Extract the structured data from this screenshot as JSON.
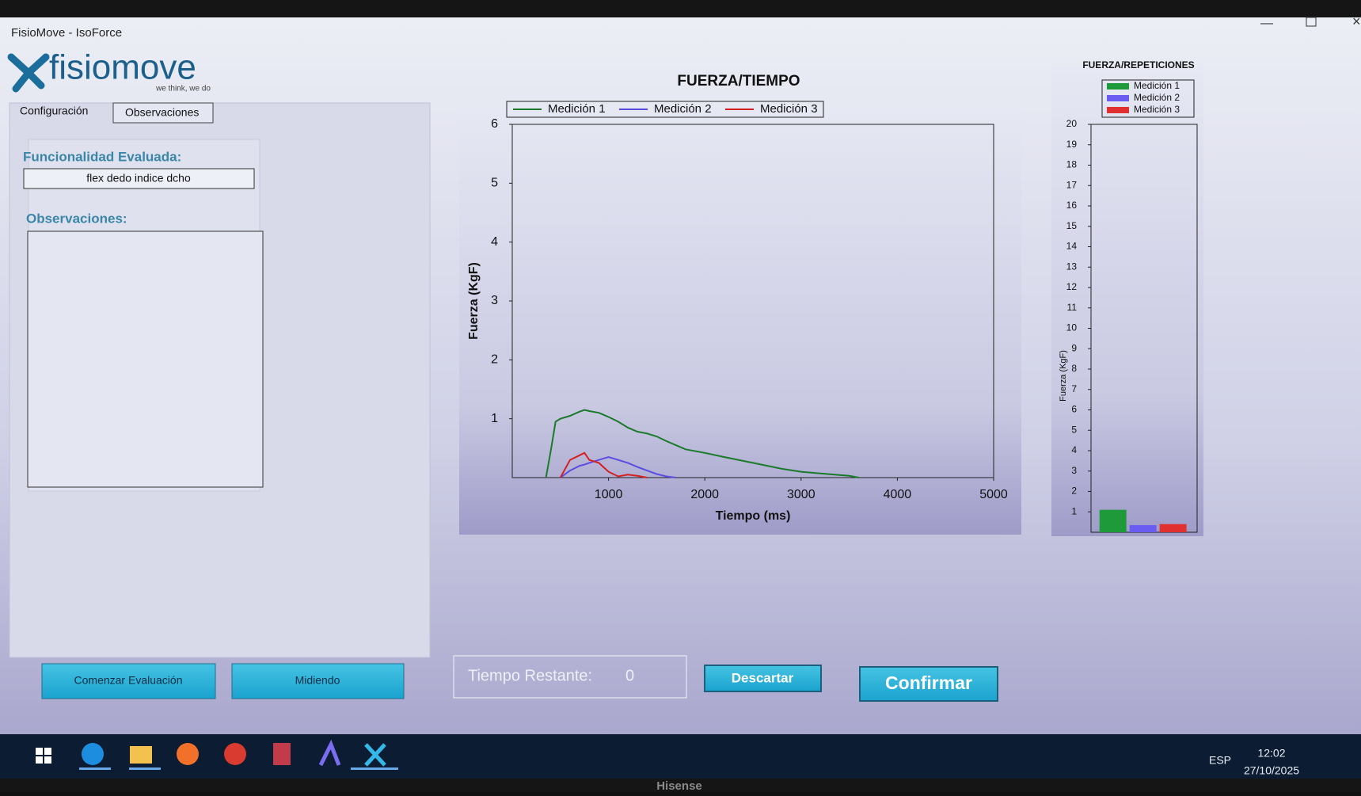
{
  "window": {
    "title": "FisioMove - IsoForce"
  },
  "logo": {
    "name": "fisiomove",
    "tagline": "we think, we do"
  },
  "tabs": [
    "Configuración",
    "Observaciones"
  ],
  "form": {
    "functionality_label": "Funcionalidad Evaluada:",
    "functionality_value": "flex dedo indice dcho",
    "observations_label": "Observaciones:"
  },
  "buttons": {
    "start": "Comenzar Evaluación",
    "measuring": "Midiendo",
    "discard": "Descartar",
    "confirm": "Confirmar"
  },
  "timer": {
    "label": "Tiempo Restante:",
    "value": 0
  },
  "chart_data": [
    {
      "type": "line",
      "title": "FUERZA/TIEMPO",
      "x_label": "Tiempo (ms)",
      "y_label": "Fuerza (KgF)",
      "x": [
        350,
        400,
        450,
        500,
        600,
        700,
        750,
        800,
        900,
        1000,
        1100,
        1200,
        1300,
        1400,
        1500,
        1600,
        1700,
        1800,
        2000,
        2200,
        2500,
        2800,
        3000,
        3200,
        3500,
        3600
      ],
      "series": [
        {
          "name": "Medición 1",
          "color": "#1a7a2a",
          "values": [
            0,
            0.45,
            0.95,
            1.0,
            1.05,
            1.12,
            1.15,
            1.13,
            1.1,
            1.03,
            0.95,
            0.85,
            0.78,
            0.75,
            0.7,
            0.62,
            0.55,
            0.48,
            0.42,
            0.35,
            0.25,
            0.15,
            0.1,
            0.07,
            0.03,
            0
          ]
        },
        {
          "name": "Medición 2",
          "color": "#5b4de0",
          "values": [
            null,
            null,
            null,
            0,
            0.12,
            0.2,
            0.22,
            0.25,
            0.3,
            0.35,
            0.3,
            0.25,
            0.18,
            0.12,
            0.06,
            0.02,
            0,
            null,
            null,
            null,
            null,
            null,
            null,
            null,
            null,
            null
          ]
        },
        {
          "name": "Medición 3",
          "color": "#d42020",
          "values": [
            null,
            null,
            null,
            0,
            0.3,
            0.38,
            0.42,
            0.3,
            0.25,
            0.1,
            0.02,
            0.05,
            0.03,
            0,
            null,
            null,
            null,
            null,
            null,
            null,
            null,
            null,
            null,
            null,
            null,
            null
          ]
        }
      ],
      "xlim": [
        0,
        5000
      ],
      "xticks": [
        1000,
        2000,
        3000,
        4000,
        5000
      ],
      "ylim": [
        0,
        6
      ],
      "yticks": [
        1,
        2,
        3,
        4,
        5,
        6
      ],
      "grid": false,
      "legend": "top"
    },
    {
      "type": "bar",
      "title": "FUERZA/REPETICIONES",
      "y_label": "Fuerza (KgF)",
      "categories": [
        null
      ],
      "series": [
        {
          "name": "Medición 1",
          "color": "#1f9a3a",
          "values": [
            1.1
          ]
        },
        {
          "name": "Medición 2",
          "color": "#6a5cf0",
          "values": [
            0.35
          ]
        },
        {
          "name": "Medición 3",
          "color": "#e03030",
          "values": [
            0.4
          ]
        }
      ],
      "ylim": [
        0,
        20
      ],
      "yticks": [
        1,
        2,
        3,
        4,
        5,
        6,
        7,
        8,
        9,
        10,
        11,
        12,
        13,
        14,
        15,
        16,
        17,
        18,
        19,
        20
      ],
      "grid": false,
      "legend": "top"
    }
  ],
  "taskbar": {
    "language": "ESP",
    "time": "12:02",
    "date": "27/10/2025"
  },
  "monitor": {
    "brand": "Hisense"
  }
}
